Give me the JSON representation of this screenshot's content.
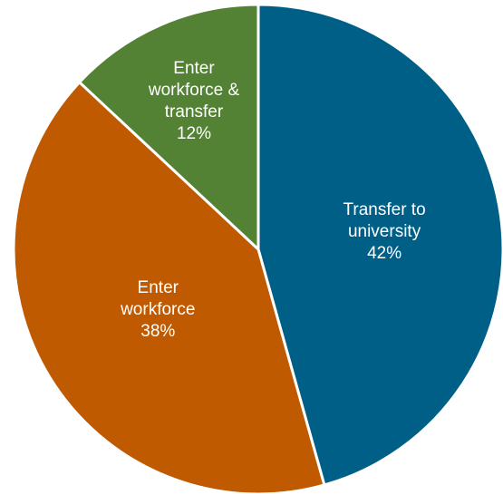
{
  "chart_data": {
    "type": "pie",
    "categories": [
      "Transfer to university",
      "Enter workforce",
      "Enter workforce & transfer"
    ],
    "values": [
      42,
      38,
      12
    ],
    "value_labels": [
      "42%",
      "38%",
      "12%"
    ],
    "colors": [
      "#005f86",
      "#c05a00",
      "#548235"
    ]
  }
}
